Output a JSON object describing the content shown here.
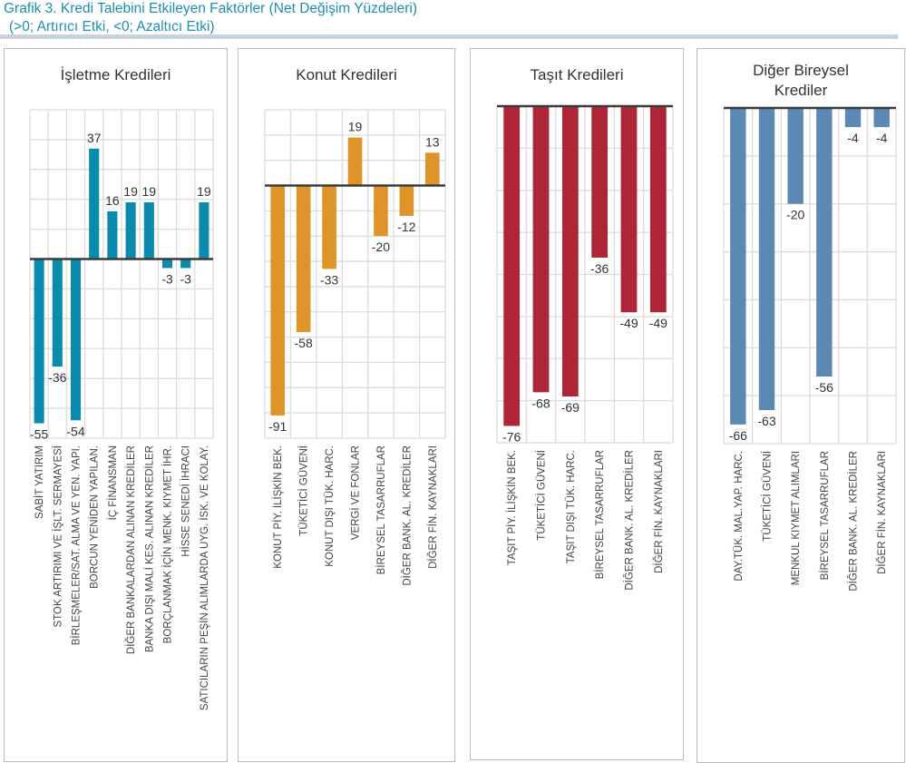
{
  "title": "Grafik 3. Kredi Talebini Etkileyen Faktörler (Net Değişim Yüzdeleri)",
  "subtitle": "(>0; Artırıcı Etki, <0; Azaltıcı Etki)",
  "chart_data": [
    {
      "type": "bar",
      "title": "İşletme Kredileri",
      "color": "#0a8aad",
      "ylim": [
        -60,
        50
      ],
      "grid": true,
      "categories": [
        "SABİT YATIRIM",
        "STOK ARTIRIMI VE İŞLT. SERMAYESİ",
        "BİRLEŞMELER/SAT. ALMA VE YEN. YAPI.",
        "BORCUN YENİDEN YAPILAN.",
        "İÇ FİNANSMAN",
        "DİĞER BANKALARDAN ALINAN KREDİLER",
        "BANKA DIŞI MALİ KES. ALINAN KREDİLER",
        "BORÇLANMAK İÇİN MENK. KIYMET İHR.",
        "HİSSE SENEDİ İHRACI",
        "SATICILARIN PEŞİN ALIMLARDA UYG. İSK. VE KOLAY."
      ],
      "values": [
        -55,
        -36,
        -54,
        37,
        16,
        19,
        19,
        -3,
        -3,
        19
      ]
    },
    {
      "type": "bar",
      "title": "Konut Kredileri",
      "color": "#de9429",
      "ylim": [
        -100,
        30
      ],
      "grid": true,
      "categories": [
        "KONUT PİY. İLİŞKİN BEK.",
        "TÜKETİCİ GÜVENİ",
        "KONUT DIŞI TÜK. HARC.",
        "VERGİ VE FONLAR",
        "BİREYSEL TASARRUFLAR",
        "DİĞER BANK. AL. KREDİLER",
        "DİĞER FİN. KAYNAKLARI"
      ],
      "values": [
        -91,
        -58,
        -33,
        19,
        -20,
        -12,
        13
      ]
    },
    {
      "type": "bar",
      "title": "Taşıt Kredileri",
      "color": "#ad2536",
      "ylim": [
        -80,
        0
      ],
      "grid": true,
      "categories": [
        "TAŞIT PİY. İLİŞKİN BEK.",
        "TÜKETİCİ GÜVENİ",
        "TAŞIT DIŞI TÜK. HARC.",
        "BİREYSEL TASARRUFLAR",
        "DİĞER BANK. AL. KREDİLER",
        "DİĞER FİN. KAYNAKLARI"
      ],
      "values": [
        -76,
        -68,
        -69,
        -36,
        -49,
        -49
      ]
    },
    {
      "type": "bar",
      "title": "Diğer Bireysel Krediler",
      "color": "#5b89b4",
      "ylim": [
        -70,
        0
      ],
      "grid": true,
      "categories": [
        "DAY.TÜK. MAL.YAP. HARC.",
        "TÜKETİCİ GÜVENİ",
        "MENKUL KIYMET ALIMLARI",
        "BİREYSEL TASARRUFLAR",
        "DİĞER BANK. AL. KREDİLER",
        "DİĞER FİN. KAYNAKLARI"
      ],
      "values": [
        -66,
        -63,
        -20,
        -56,
        -4,
        -4
      ]
    }
  ]
}
